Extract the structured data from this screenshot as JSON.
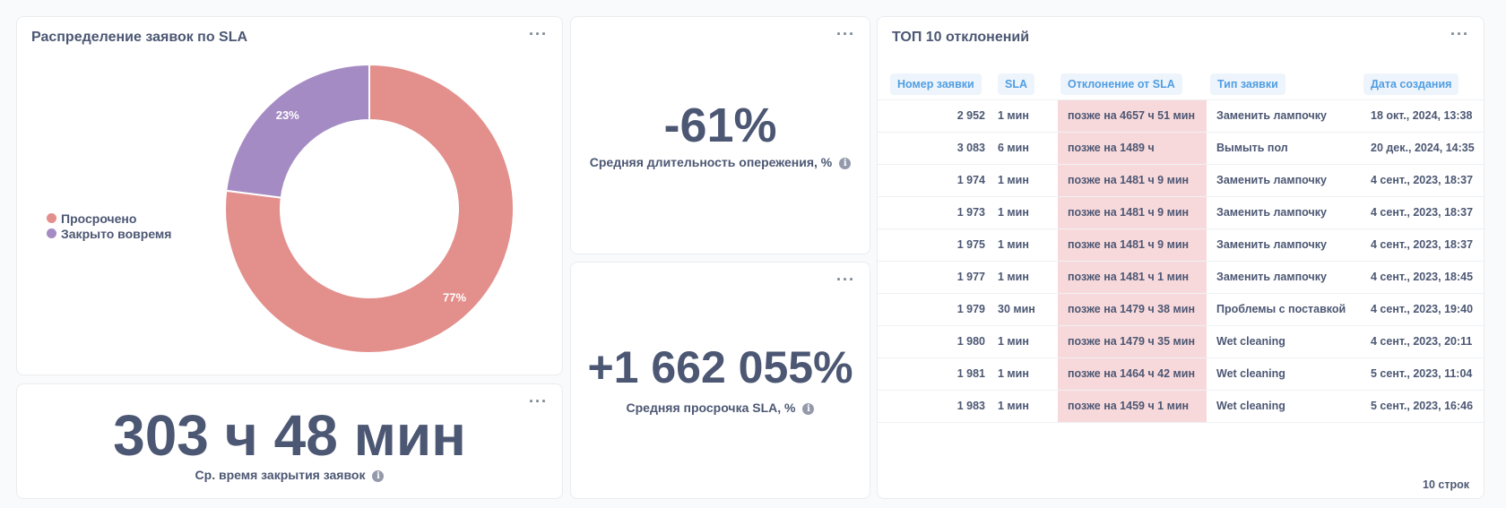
{
  "sla_card": {
    "title": "Распределение заявок по SLA",
    "menu": "···",
    "legend": [
      {
        "label": "Просрочено",
        "color": "#e38f8c"
      },
      {
        "label": "Закрыто вовремя",
        "color": "#a58bc3"
      }
    ],
    "chart_data": {
      "type": "pie",
      "labels": [
        "Просрочено",
        "Закрыто вовремя"
      ],
      "values": [
        77,
        23
      ],
      "value_labels": [
        "77%",
        "23%"
      ],
      "colors": [
        "#e38f8c",
        "#a58bc3"
      ],
      "donut": true
    }
  },
  "close_time_card": {
    "value": "303 ч 48 мин",
    "caption": "Ср. время закрытия заявок",
    "menu": "···"
  },
  "lead_card": {
    "value": "-61%",
    "caption": "Средняя длительность опережения, %",
    "menu": "···"
  },
  "overdue_card": {
    "value": "+1 662 055%",
    "caption": "Средняя просрочка SLA, %",
    "menu": "···"
  },
  "top_card": {
    "title": "ТОП 10 отклонений",
    "menu": "···",
    "columns": [
      "Номер заявки",
      "SLA",
      "Отклонение от SLA",
      "Тип заявки",
      "Дата создания"
    ],
    "rows": [
      [
        "2 952",
        "1 мин",
        "позже на 4657 ч 51 мин",
        "Заменить лампочку",
        "18 окт., 2024, 13:38"
      ],
      [
        "3 083",
        "6 мин",
        "позже на 1489 ч",
        "Вымыть пол",
        "20 дек., 2024, 14:35"
      ],
      [
        "1 974",
        "1 мин",
        "позже на 1481 ч 9 мин",
        "Заменить лампочку",
        "4 сент., 2023, 18:37"
      ],
      [
        "1 973",
        "1 мин",
        "позже на 1481 ч 9 мин",
        "Заменить лампочку",
        "4 сент., 2023, 18:37"
      ],
      [
        "1 975",
        "1 мин",
        "позже на 1481 ч 9 мин",
        "Заменить лампочку",
        "4 сент., 2023, 18:37"
      ],
      [
        "1 977",
        "1 мин",
        "позже на 1481 ч 1 мин",
        "Заменить лампочку",
        "4 сент., 2023, 18:45"
      ],
      [
        "1 979",
        "30 мин",
        "позже на 1479 ч 38 мин",
        "Проблемы с поставкой",
        "4 сент., 2023, 19:40"
      ],
      [
        "1 980",
        "1 мин",
        "позже на 1479 ч 35 мин",
        "Wet cleaning",
        "4 сент., 2023, 20:11"
      ],
      [
        "1 981",
        "1 мин",
        "позже на 1464 ч 42 мин",
        "Wet cleaning",
        "5 сент., 2023, 11:04"
      ],
      [
        "1 983",
        "1 мин",
        "позже на 1459 ч 1 мин",
        "Wet cleaning",
        "5 сент., 2023, 16:46"
      ]
    ],
    "footer": "10 строк"
  },
  "icons": {
    "info": "info-icon",
    "menu": "more-icon"
  }
}
